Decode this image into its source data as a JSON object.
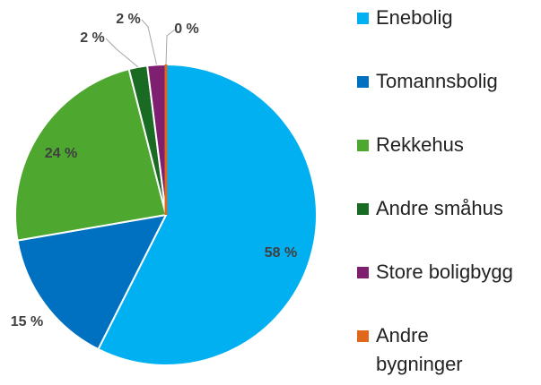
{
  "chart_data": {
    "type": "pie",
    "categories": [
      "Enebolig",
      "Tomannsbolig",
      "Rekkehus",
      "Andre småhus",
      "Store boligbygg",
      "Andre bygninger"
    ],
    "values": [
      58,
      15,
      24,
      2,
      2,
      0
    ],
    "value_labels": [
      "58 %",
      "15 %",
      "24 %",
      "2 %",
      "2 %",
      "0 %"
    ],
    "colors": [
      "#00b0f0",
      "#0070c0",
      "#4ea72e",
      "#196b24",
      "#7e1f70",
      "#e0681c"
    ],
    "legend": "right"
  }
}
